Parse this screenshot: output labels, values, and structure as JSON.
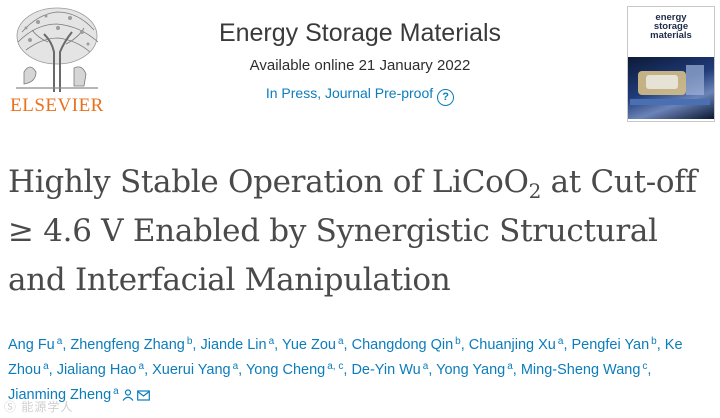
{
  "header": {
    "publisher_logo_icon": "elsevier-tree-logo",
    "publisher_wordmark": "ELSEVIER",
    "journal_title": "Energy Storage Materials",
    "available_online": "Available online 21 January 2022",
    "status": "In Press, Journal Pre-proof",
    "status_help_icon": "question-circle-icon",
    "cover_text_line1": "energy",
    "cover_text_line2": "storage",
    "cover_text_line3": "materials"
  },
  "article": {
    "title_part1": "Highly Stable Operation of LiCoO",
    "title_sub": "2",
    "title_part2": " at Cut-off ≥ 4.6 V Enabled by Synergistic Structural and Interfacial Manipulation"
  },
  "authors": [
    {
      "name": "Ang Fu",
      "aff": "a"
    },
    {
      "name": "Zhengfeng Zhang",
      "aff": "b"
    },
    {
      "name": "Jiande Lin",
      "aff": "a"
    },
    {
      "name": "Yue Zou",
      "aff": "a"
    },
    {
      "name": "Changdong Qin",
      "aff": "b"
    },
    {
      "name": "Chuanjing Xu",
      "aff": "a"
    },
    {
      "name": "Pengfei Yan",
      "aff": "b"
    },
    {
      "name": "Ke Zhou",
      "aff": "a"
    },
    {
      "name": "Jialiang Hao",
      "aff": "a"
    },
    {
      "name": "Xuerui Yang",
      "aff": "a"
    },
    {
      "name": "Yong Cheng",
      "aff": "a, c"
    },
    {
      "name": "De-Yin Wu",
      "aff": "a"
    },
    {
      "name": "Yong Yang",
      "aff": "a"
    },
    {
      "name": "Ming-Sheng Wang",
      "aff": "c"
    },
    {
      "name": "Jianming Zheng",
      "aff": "a"
    }
  ],
  "corresponding_icons": [
    "person-icon",
    "envelope-icon"
  ],
  "watermark": "Ⓢ 能源学人"
}
